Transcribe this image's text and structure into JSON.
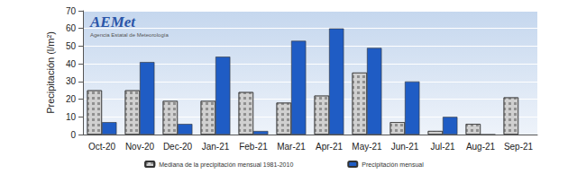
{
  "chart_data": {
    "type": "bar",
    "y_label": "Precipitación (l/m²)",
    "annotations": [
      "AEMet",
      "Agencia Estatal de Meteorología"
    ],
    "categories": [
      "Oct-20",
      "Nov-20",
      "Dec-20",
      "Jan-21",
      "Feb-21",
      "Mar-21",
      "Apr-21",
      "May-21",
      "Jun-21",
      "Jul-21",
      "Aug-21",
      "Sep-21"
    ],
    "series": [
      {
        "name": "Mediana de la precipitación mensual 1981-2010",
        "color": "#d0d0d0",
        "values": [
          25,
          25,
          19,
          19,
          24,
          18,
          22,
          35,
          7,
          2,
          6,
          21
        ]
      },
      {
        "name": "Precipitación mensual",
        "color": "#1f5cc4",
        "values": [
          7,
          41,
          6,
          44,
          2,
          53,
          60,
          49,
          30,
          10,
          0,
          null
        ]
      }
    ],
    "ylim": [
      0,
      70
    ],
    "yticks": [
      0,
      10,
      20,
      30,
      40,
      50,
      60,
      70
    ],
    "grid": true,
    "legend": "bottom"
  }
}
